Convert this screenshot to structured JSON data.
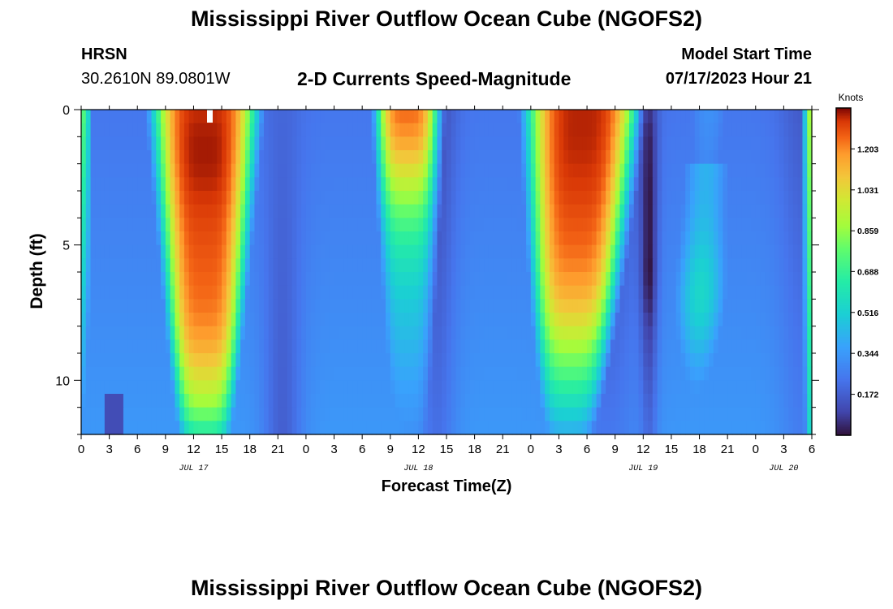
{
  "header": {
    "title": "Mississippi River Outflow Ocean Cube (NGOFS2)",
    "station_id": "HRSN",
    "station_coords": "30.2610N  89.0801W",
    "subtitle": "2-D Currents Speed-Magnitude",
    "model_start_label": "Model Start Time",
    "model_start_value": "07/17/2023 Hour 21"
  },
  "footer": {
    "title": "Mississippi River Outflow Ocean Cube (NGOFS2)"
  },
  "chart_data": {
    "type": "heatmap",
    "xlabel": "Forecast Time(Z)",
    "ylabel": "Depth (ft)",
    "x_tick_labels": [
      "0",
      "3",
      "6",
      "9",
      "12",
      "15",
      "18",
      "21",
      "0",
      "3",
      "6",
      "9",
      "12",
      "15",
      "18",
      "21",
      "0",
      "3",
      "6",
      "9",
      "12",
      "15",
      "18",
      "21",
      "0",
      "3",
      "6"
    ],
    "date_labels": [
      {
        "label": "JUL 17",
        "tick": 4
      },
      {
        "label": "JUL 18",
        "tick": 12
      },
      {
        "label": "JUL 19",
        "tick": 20
      },
      {
        "label": "JUL 20",
        "tick": 25
      }
    ],
    "y_tick_labels": [
      "0",
      "5",
      "10"
    ],
    "ylim": [
      0,
      12
    ],
    "xlim_hours": [
      0,
      78
    ],
    "colorbar": {
      "label": "Knots",
      "ticks": [
        "1.203",
        "1.031",
        "0.859",
        "0.688",
        "0.516",
        "0.344",
        "0.172"
      ],
      "range": [
        0,
        1.375
      ]
    },
    "depth_levels_ft": [
      0,
      1,
      2,
      3,
      4,
      5,
      6,
      7,
      8,
      9,
      10,
      11,
      12
    ],
    "core_profiles_knots": {
      "peak1": [
        1.33,
        1.35,
        1.35,
        1.33,
        1.3,
        1.28,
        1.26,
        1.24,
        1.2,
        1.12,
        1.0,
        0.85,
        0.62
      ],
      "peak2": [
        1.25,
        1.18,
        1.05,
        0.9,
        0.75,
        0.64,
        0.56,
        0.5,
        0.46,
        0.42,
        0.38,
        0.35,
        0.32
      ],
      "peak3": [
        1.34,
        1.34,
        1.33,
        1.31,
        1.28,
        1.25,
        1.2,
        1.12,
        1.0,
        0.85,
        0.7,
        0.55,
        0.4
      ],
      "peak4": [
        0.46,
        0.44,
        0.42,
        0.42,
        0.44,
        0.48,
        0.53,
        0.55,
        0.5,
        0.42,
        0.35,
        0.3,
        0.26
      ],
      "low_jul19_hour12": [
        0.07,
        0.03,
        0.02,
        0.01,
        0.01,
        0.01,
        0.0,
        0.03,
        0.08,
        0.12,
        0.15,
        0.18,
        0.2
      ]
    }
  }
}
